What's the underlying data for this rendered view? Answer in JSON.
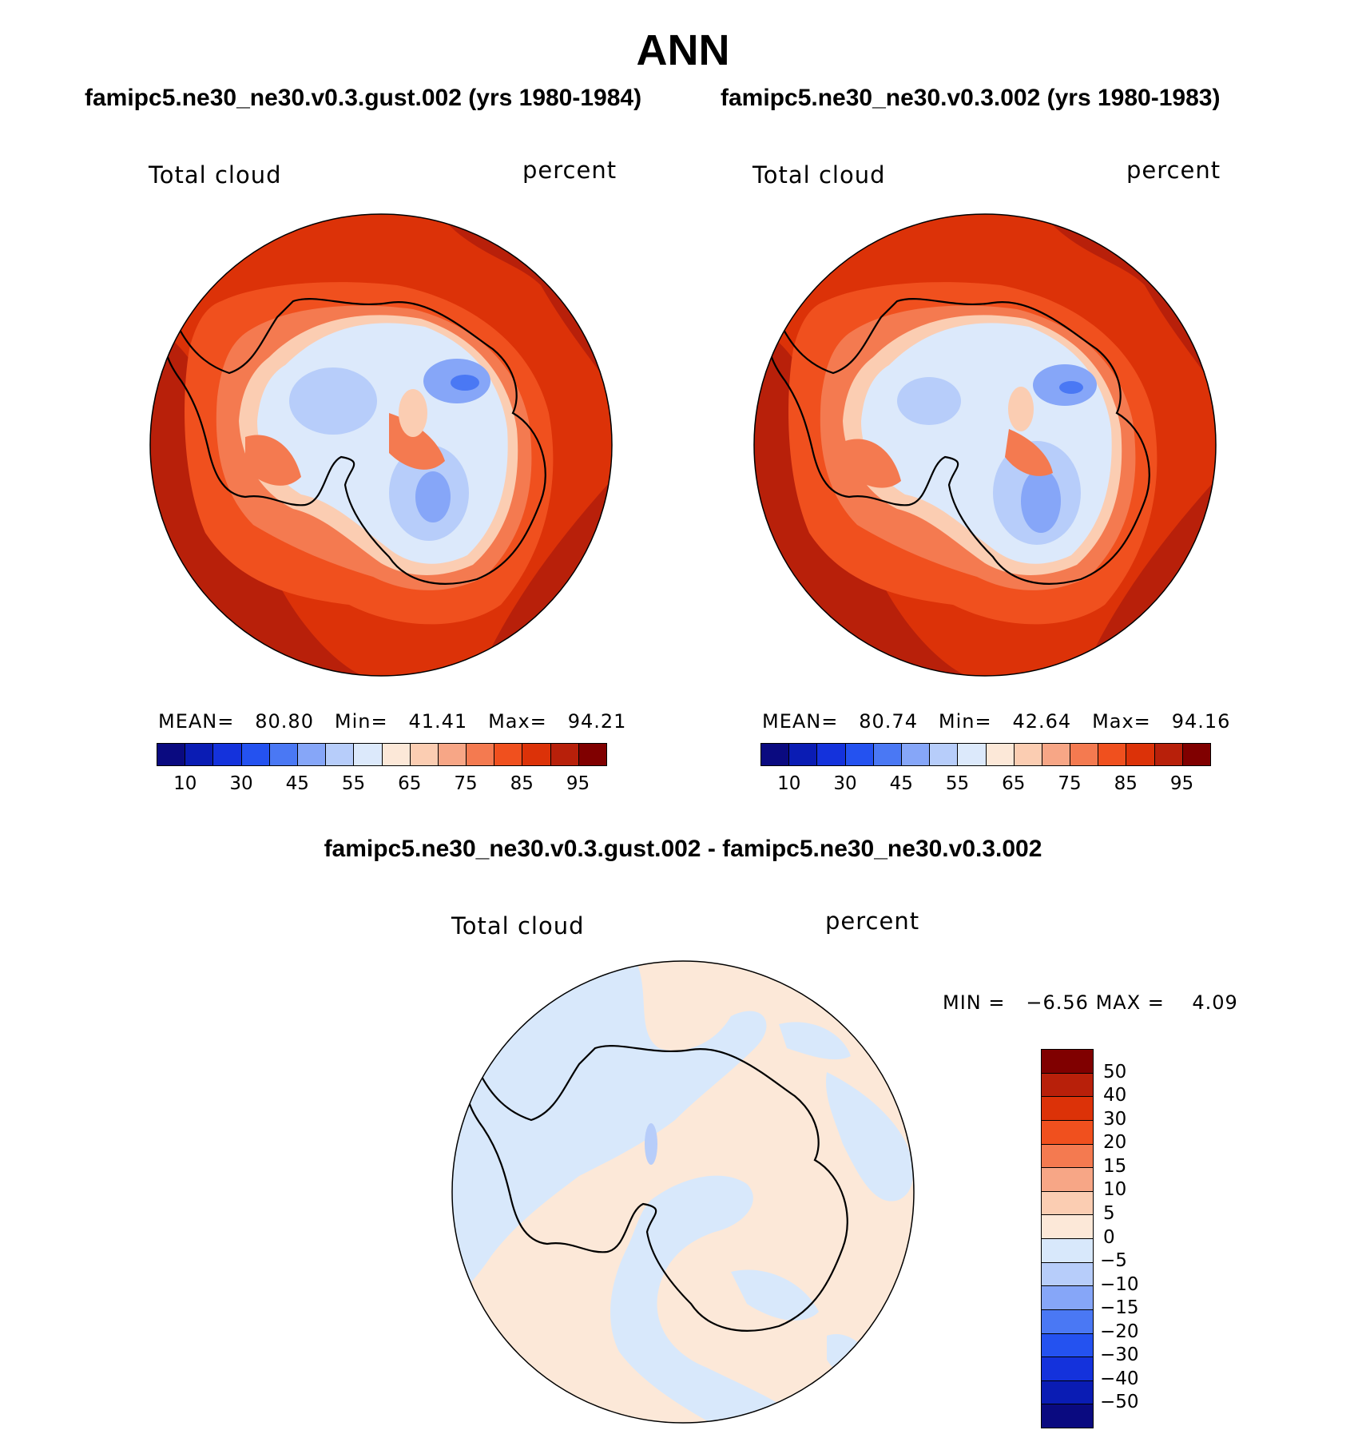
{
  "title": "ANN",
  "panels": [
    {
      "case": "famipc5.ne30_ne30.v0.3.gust.002 (yrs 1980-1984)",
      "variable": "Total cloud",
      "units": "percent",
      "stats": {
        "mean_label": "MEAN=",
        "mean": "80.80",
        "min_label": "Min=",
        "min": "41.41",
        "max_label": "Max=",
        "max": "94.21"
      }
    },
    {
      "case": "famipc5.ne30_ne30.v0.3.002 (yrs 1980-1983)",
      "variable": "Total cloud",
      "units": "percent",
      "stats": {
        "mean_label": "MEAN=",
        "mean": "80.74",
        "min_label": "Min=",
        "min": "42.64",
        "max_label": "Max=",
        "max": "94.16"
      }
    }
  ],
  "diff": {
    "title": "famipc5.ne30_ne30.v0.3.gust.002 - famipc5.ne30_ne30.v0.3.002",
    "variable": "Total cloud",
    "units": "percent",
    "min_label": "MIN =",
    "min": "−6.56",
    "max_label": "MAX =",
    "max": "4.09"
  },
  "colorbar_main": {
    "colors": [
      "#0a0a80",
      "#0a1cb4",
      "#1432dc",
      "#2452f0",
      "#4a78f4",
      "#86a6f8",
      "#b7cdfa",
      "#dce9fb",
      "#fce8d8",
      "#fbcdb2",
      "#f7a686",
      "#f47a50",
      "#f0501e",
      "#dc3208",
      "#b8200a",
      "#800000"
    ],
    "tick_labels": [
      "10",
      "30",
      "45",
      "55",
      "65",
      "75",
      "85",
      "95"
    ]
  },
  "colorbar_diff": {
    "colors": [
      "#800000",
      "#b8200a",
      "#dc3208",
      "#f0501e",
      "#f47a50",
      "#f7a686",
      "#fbcdb2",
      "#fce8d8",
      "#d8e8fb",
      "#b7cdfa",
      "#86a6f8",
      "#4a78f4",
      "#2452f0",
      "#1432dc",
      "#0a1cb4",
      "#0a0a80"
    ],
    "tick_labels": [
      "50",
      "40",
      "30",
      "20",
      "15",
      "10",
      "5",
      "0",
      "−5",
      "−10",
      "−15",
      "−20",
      "−30",
      "−40",
      "−50"
    ]
  },
  "chart_data": [
    {
      "type": "heatmap",
      "projection": "south polar stereographic",
      "title": "famipc5.ne30_ne30.v0.3.gust.002 (yrs 1980-1984)",
      "field": "Total cloud",
      "units": "percent",
      "levels": [
        10,
        20,
        30,
        40,
        45,
        50,
        55,
        60,
        65,
        70,
        75,
        80,
        85,
        90,
        95
      ],
      "mean": 80.8,
      "min": 41.41,
      "max": 94.21
    },
    {
      "type": "heatmap",
      "projection": "south polar stereographic",
      "title": "famipc5.ne30_ne30.v0.3.002 (yrs 1980-1983)",
      "field": "Total cloud",
      "units": "percent",
      "levels": [
        10,
        20,
        30,
        40,
        45,
        50,
        55,
        60,
        65,
        70,
        75,
        80,
        85,
        90,
        95
      ],
      "mean": 80.74,
      "min": 42.64,
      "max": 94.16
    },
    {
      "type": "heatmap",
      "projection": "south polar stereographic",
      "title": "famipc5.ne30_ne30.v0.3.gust.002 - famipc5.ne30_ne30.v0.3.002",
      "field": "Total cloud",
      "units": "percent",
      "levels": [
        -50,
        -40,
        -30,
        -20,
        -15,
        -10,
        -5,
        0,
        5,
        10,
        15,
        20,
        30,
        40,
        50
      ],
      "min": -6.56,
      "max": 4.09
    }
  ]
}
